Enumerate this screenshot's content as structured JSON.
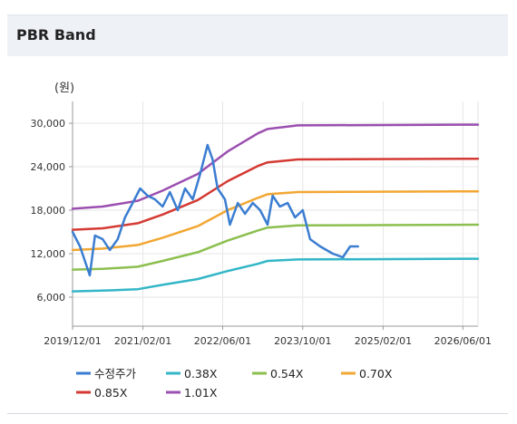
{
  "header": {
    "title": "PBR Band"
  },
  "chart_data": {
    "type": "line",
    "title": "PBR Band",
    "ylabel_unit": "(원)",
    "ylim": [
      2000,
      33000
    ],
    "yticks": [
      6000,
      12000,
      18000,
      24000,
      30000
    ],
    "ytick_labels": [
      "6,000",
      "12,000",
      "18,000",
      "24,000",
      "30,000"
    ],
    "xlim": [
      "2019-12-01",
      "2026-09-01"
    ],
    "xticks": [
      "2019-12-01",
      "2021-02-01",
      "2022-06-01",
      "2023-10-01",
      "2025-02-01",
      "2026-06-01"
    ],
    "xtick_labels": [
      "2019/12/01",
      "2021/02/01",
      "2022/06/01",
      "2023/10/01",
      "2025/02/01",
      "2026/06/01"
    ],
    "series": [
      {
        "name": "수정주가",
        "color": "#3a7dd1",
        "points": [
          [
            "2019-12-01",
            15000
          ],
          [
            "2020-01-15",
            13000
          ],
          [
            "2020-03-15",
            9000
          ],
          [
            "2020-04-15",
            14500
          ],
          [
            "2020-06-01",
            14000
          ],
          [
            "2020-07-15",
            12500
          ],
          [
            "2020-09-01",
            14000
          ],
          [
            "2020-10-15",
            17000
          ],
          [
            "2020-12-01",
            19000
          ],
          [
            "2021-01-15",
            21000
          ],
          [
            "2021-03-01",
            20000
          ],
          [
            "2021-04-15",
            19500
          ],
          [
            "2021-06-01",
            18500
          ],
          [
            "2021-07-15",
            20500
          ],
          [
            "2021-09-01",
            18000
          ],
          [
            "2021-10-15",
            21000
          ],
          [
            "2021-12-01",
            19500
          ],
          [
            "2022-01-15",
            23000
          ],
          [
            "2022-03-01",
            27000
          ],
          [
            "2022-04-01",
            25000
          ],
          [
            "2022-05-01",
            21000
          ],
          [
            "2022-06-15",
            19500
          ],
          [
            "2022-07-15",
            16000
          ],
          [
            "2022-09-01",
            19000
          ],
          [
            "2022-10-15",
            17500
          ],
          [
            "2022-12-01",
            19000
          ],
          [
            "2023-01-15",
            18000
          ],
          [
            "2023-03-01",
            16000
          ],
          [
            "2023-04-01",
            20000
          ],
          [
            "2023-05-15",
            18500
          ],
          [
            "2023-07-01",
            19000
          ],
          [
            "2023-08-15",
            17000
          ],
          [
            "2023-10-01",
            18000
          ],
          [
            "2023-11-15",
            14000
          ],
          [
            "2024-01-15",
            13000
          ],
          [
            "2024-04-01",
            12000
          ],
          [
            "2024-06-01",
            11500
          ],
          [
            "2024-07-15",
            13000
          ],
          [
            "2024-09-01",
            13000
          ]
        ]
      },
      {
        "name": "0.38X",
        "color": "#33b6c7",
        "points": [
          [
            "2019-12-01",
            6800
          ],
          [
            "2020-06-01",
            6900
          ],
          [
            "2021-01-01",
            7100
          ],
          [
            "2021-06-01",
            7700
          ],
          [
            "2022-01-01",
            8500
          ],
          [
            "2022-07-01",
            9600
          ],
          [
            "2023-01-01",
            10600
          ],
          [
            "2023-03-01",
            11000
          ],
          [
            "2023-09-01",
            11200
          ],
          [
            "2026-09-01",
            11300
          ]
        ]
      },
      {
        "name": "0.54X",
        "color": "#8cbf4f",
        "points": [
          [
            "2019-12-01",
            9800
          ],
          [
            "2020-06-01",
            9900
          ],
          [
            "2021-01-01",
            10200
          ],
          [
            "2021-06-01",
            11000
          ],
          [
            "2022-01-01",
            12200
          ],
          [
            "2022-07-01",
            13800
          ],
          [
            "2023-01-01",
            15200
          ],
          [
            "2023-03-01",
            15600
          ],
          [
            "2023-09-01",
            15900
          ],
          [
            "2026-09-01",
            16000
          ]
        ]
      },
      {
        "name": "0.70X",
        "color": "#f2a733",
        "points": [
          [
            "2019-12-01",
            12500
          ],
          [
            "2020-06-01",
            12700
          ],
          [
            "2021-01-01",
            13200
          ],
          [
            "2021-06-01",
            14200
          ],
          [
            "2022-01-01",
            15800
          ],
          [
            "2022-07-01",
            18000
          ],
          [
            "2023-01-01",
            19700
          ],
          [
            "2023-03-01",
            20200
          ],
          [
            "2023-09-01",
            20500
          ],
          [
            "2026-09-01",
            20600
          ]
        ]
      },
      {
        "name": "0.85X",
        "color": "#d43a33",
        "points": [
          [
            "2019-12-01",
            15300
          ],
          [
            "2020-06-01",
            15500
          ],
          [
            "2021-01-01",
            16200
          ],
          [
            "2021-06-01",
            17400
          ],
          [
            "2022-01-01",
            19400
          ],
          [
            "2022-07-01",
            22000
          ],
          [
            "2023-01-01",
            24100
          ],
          [
            "2023-03-01",
            24600
          ],
          [
            "2023-09-01",
            25000
          ],
          [
            "2026-09-01",
            25100
          ]
        ]
      },
      {
        "name": "1.01X",
        "color": "#9b4fb0",
        "points": [
          [
            "2019-12-01",
            18200
          ],
          [
            "2020-06-01",
            18500
          ],
          [
            "2021-01-01",
            19300
          ],
          [
            "2021-06-01",
            20700
          ],
          [
            "2022-01-01",
            23000
          ],
          [
            "2022-07-01",
            26100
          ],
          [
            "2023-01-01",
            28600
          ],
          [
            "2023-03-01",
            29200
          ],
          [
            "2023-09-01",
            29700
          ],
          [
            "2026-09-01",
            29800
          ]
        ]
      }
    ],
    "legend_position": "bottom"
  }
}
